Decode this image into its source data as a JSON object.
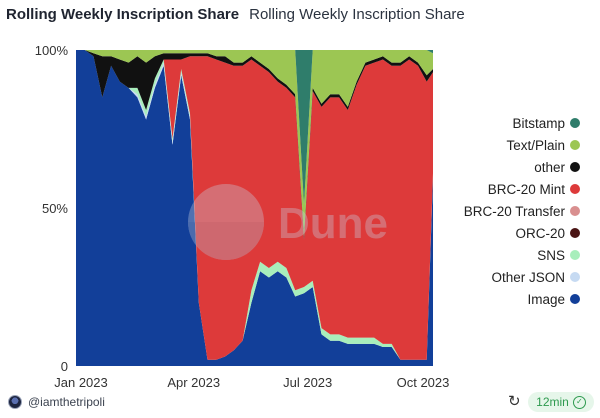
{
  "header": {
    "title": "Rolling Weekly Inscription Share",
    "subtitle": "Rolling Weekly Inscription Share"
  },
  "watermark": {
    "text": "Dune"
  },
  "footer": {
    "author": "@iamthetripoli",
    "freshness": "12min",
    "refresh_icon": "refresh-icon",
    "check_icon": "check-circle-icon"
  },
  "colors": {
    "Bitstamp": "#2f7d6b",
    "Text/Plain": "#9cc653",
    "other": "#111111",
    "BRC-20 Mint": "#dd3a3a",
    "BRC-20 Transfer": "#d98f8f",
    "ORC-20": "#4a1414",
    "SNS": "#a8eebb",
    "Other JSON": "#c6daf2",
    "Image": "#123f99"
  },
  "chart_data": {
    "type": "area",
    "stacked": "percent",
    "title": "Rolling Weekly Inscription Share",
    "xlabel": "",
    "ylabel": "",
    "x_ticks": [
      "Jan 2023",
      "Apr 2023",
      "Jul 2023",
      "Oct 2023"
    ],
    "y_ticks": [
      "0",
      "50%",
      "100%"
    ],
    "ylim": [
      0,
      100
    ],
    "xlim": [
      "2022-12-28",
      "2023-10-09"
    ],
    "legend_position": "right",
    "x": [
      "2022-12-28",
      "2023-01-04",
      "2023-01-11",
      "2023-01-18",
      "2023-01-25",
      "2023-02-01",
      "2023-02-08",
      "2023-02-15",
      "2023-02-22",
      "2023-03-01",
      "2023-03-08",
      "2023-03-15",
      "2023-03-22",
      "2023-03-29",
      "2023-04-05",
      "2023-04-12",
      "2023-04-19",
      "2023-04-26",
      "2023-05-03",
      "2023-05-10",
      "2023-05-17",
      "2023-05-24",
      "2023-05-31",
      "2023-06-07",
      "2023-06-14",
      "2023-06-21",
      "2023-06-28",
      "2023-07-05",
      "2023-07-12",
      "2023-07-19",
      "2023-07-26",
      "2023-08-02",
      "2023-08-09",
      "2023-08-16",
      "2023-08-23",
      "2023-08-30",
      "2023-09-06",
      "2023-09-13",
      "2023-09-20",
      "2023-09-27",
      "2023-10-04",
      "2023-10-09"
    ],
    "series": [
      {
        "name": "Image",
        "values": [
          100,
          100,
          98,
          85,
          95,
          90,
          88,
          85,
          78,
          88,
          95,
          70,
          92,
          78,
          20,
          2,
          2,
          3,
          5,
          8,
          20,
          30,
          28,
          30,
          28,
          22,
          23,
          25,
          10,
          8,
          8,
          7,
          7,
          7,
          7,
          6,
          6,
          2,
          2,
          2,
          2,
          60
        ]
      },
      {
        "name": "Other JSON",
        "values": [
          0,
          0,
          0,
          0,
          0,
          0,
          0,
          1,
          1,
          1,
          1,
          1,
          1,
          1,
          0,
          0,
          0,
          0,
          0,
          0,
          0,
          0,
          0,
          0,
          0,
          0,
          0,
          0,
          0,
          0,
          0,
          0,
          0,
          0,
          0,
          0,
          0,
          0,
          0,
          0,
          0,
          0
        ]
      },
      {
        "name": "SNS",
        "values": [
          0,
          0,
          0,
          0,
          0,
          0,
          0,
          2,
          2,
          2,
          1,
          1,
          1,
          1,
          0,
          0,
          0,
          0,
          0,
          0,
          4,
          3,
          3,
          3,
          3,
          2,
          2,
          2,
          2,
          2,
          2,
          2,
          2,
          2,
          2,
          1,
          1,
          0,
          0,
          0,
          0,
          1
        ]
      },
      {
        "name": "ORC-20",
        "values": [
          0,
          0,
          0,
          0,
          0,
          0,
          0,
          0,
          0,
          0,
          0,
          0,
          0,
          0,
          0,
          0,
          0,
          0,
          0,
          0,
          0,
          0,
          0,
          0,
          0,
          0,
          0,
          0,
          0,
          0,
          0,
          0,
          0,
          0,
          0,
          0,
          0,
          0,
          0,
          0,
          0,
          0
        ]
      },
      {
        "name": "BRC-20 Transfer",
        "values": [
          0,
          0,
          0,
          0,
          0,
          0,
          0,
          0,
          0,
          0,
          0,
          0,
          0,
          0,
          0,
          0,
          0,
          0,
          0,
          0,
          0,
          0,
          0,
          0,
          0,
          0,
          0,
          0,
          0,
          0,
          0,
          0,
          0,
          0,
          0,
          0,
          0,
          0,
          0,
          0,
          0,
          0
        ]
      },
      {
        "name": "BRC-20 Mint",
        "values": [
          0,
          0,
          0,
          0,
          0,
          0,
          0,
          0,
          0,
          0,
          0,
          25,
          3,
          18,
          78,
          96,
          95,
          93,
          90,
          87,
          73,
          62,
          62,
          57,
          57,
          61,
          15,
          60,
          70,
          75,
          75,
          72,
          80,
          86,
          87,
          90,
          88,
          93,
          95,
          93,
          88,
          32
        ]
      },
      {
        "name": "other",
        "values": [
          0,
          0,
          1,
          13,
          3,
          7,
          8,
          10,
          15,
          7,
          2,
          2,
          2,
          1,
          1,
          1,
          1,
          2,
          1,
          1,
          1,
          1,
          1,
          1,
          1,
          1,
          1,
          1,
          1,
          1,
          1,
          1,
          1,
          1,
          1,
          1,
          1,
          1,
          1,
          1,
          2,
          1
        ]
      },
      {
        "name": "Text/Plain",
        "values": [
          0,
          0,
          1,
          2,
          2,
          3,
          4,
          2,
          4,
          2,
          1,
          1,
          1,
          1,
          1,
          1,
          2,
          2,
          4,
          4,
          2,
          4,
          6,
          9,
          11,
          14,
          10,
          12,
          17,
          14,
          14,
          18,
          10,
          4,
          3,
          2,
          4,
          4,
          2,
          4,
          8,
          5
        ]
      },
      {
        "name": "Bitstamp",
        "values": [
          0,
          0,
          0,
          0,
          0,
          0,
          0,
          0,
          0,
          0,
          0,
          0,
          0,
          0,
          0,
          0,
          0,
          0,
          0,
          0,
          0,
          0,
          0,
          0,
          0,
          0,
          49,
          0,
          0,
          0,
          0,
          0,
          0,
          0,
          0,
          0,
          0,
          0,
          0,
          0,
          0,
          1
        ]
      }
    ],
    "legend": [
      "Bitstamp",
      "Text/Plain",
      "other",
      "BRC-20 Mint",
      "BRC-20 Transfer",
      "ORC-20",
      "SNS",
      "Other JSON",
      "Image"
    ]
  }
}
